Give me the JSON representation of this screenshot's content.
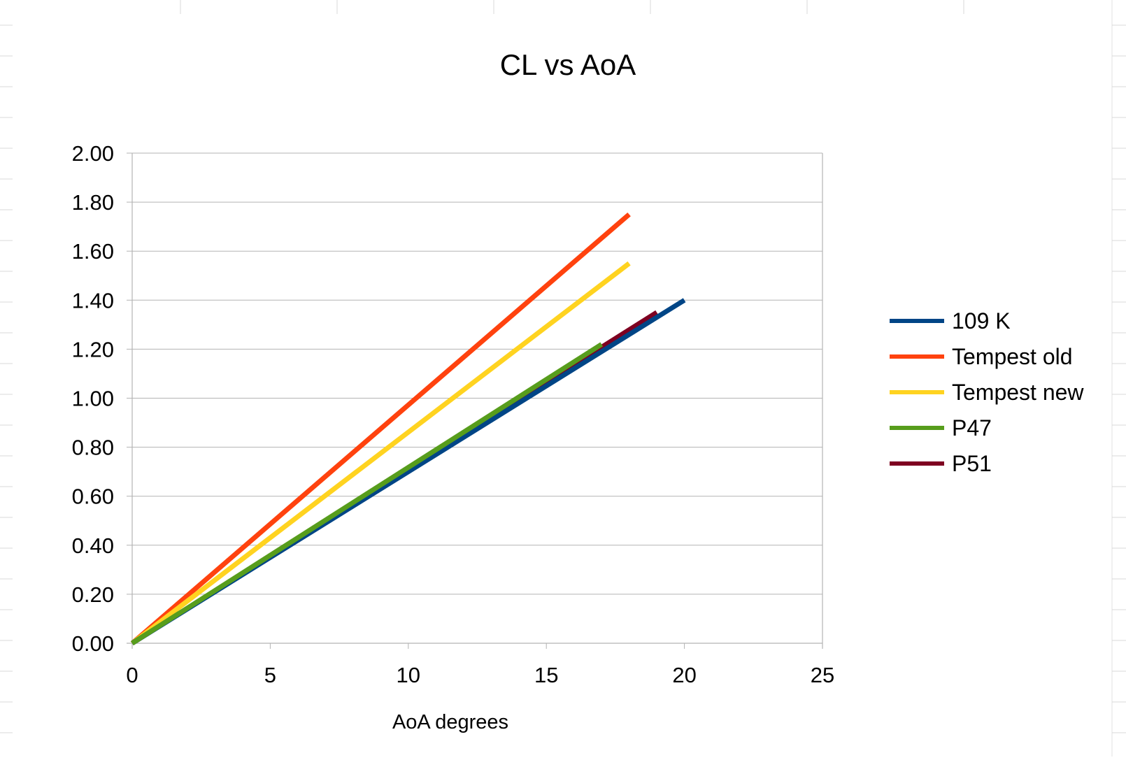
{
  "chart_data": {
    "type": "line",
    "title": "CL vs AoA",
    "xlabel": "AoA degrees",
    "ylabel": "",
    "xlim": [
      0,
      25
    ],
    "ylim": [
      0,
      2.0
    ],
    "xticks": [
      0,
      5,
      10,
      15,
      20,
      25
    ],
    "yticks": [
      0,
      0.2,
      0.4,
      0.6,
      0.8,
      1.0,
      1.2,
      1.4,
      1.6,
      1.8,
      2.0
    ],
    "ytick_labels": [
      "0.00",
      "0.20",
      "0.40",
      "0.60",
      "0.80",
      "1.00",
      "1.20",
      "1.40",
      "1.60",
      "1.80",
      "2.00"
    ],
    "xtick_labels": [
      "0",
      "5",
      "10",
      "15",
      "20",
      "25"
    ],
    "grid": "horizontal",
    "legend_position": "right",
    "series": [
      {
        "name": "109 K",
        "color": "#004586",
        "x": [
          0,
          20
        ],
        "y": [
          0,
          1.4
        ]
      },
      {
        "name": "Tempest old",
        "color": "#ff420e",
        "x": [
          0,
          18
        ],
        "y": [
          0,
          1.75
        ]
      },
      {
        "name": "Tempest new",
        "color": "#ffd320",
        "x": [
          0,
          18
        ],
        "y": [
          0,
          1.55
        ]
      },
      {
        "name": "P47",
        "color": "#579d1c",
        "x": [
          0,
          17
        ],
        "y": [
          0,
          1.22
        ]
      },
      {
        "name": "P51",
        "color": "#7e0021",
        "x": [
          0,
          19
        ],
        "y": [
          0,
          1.35
        ]
      }
    ]
  }
}
